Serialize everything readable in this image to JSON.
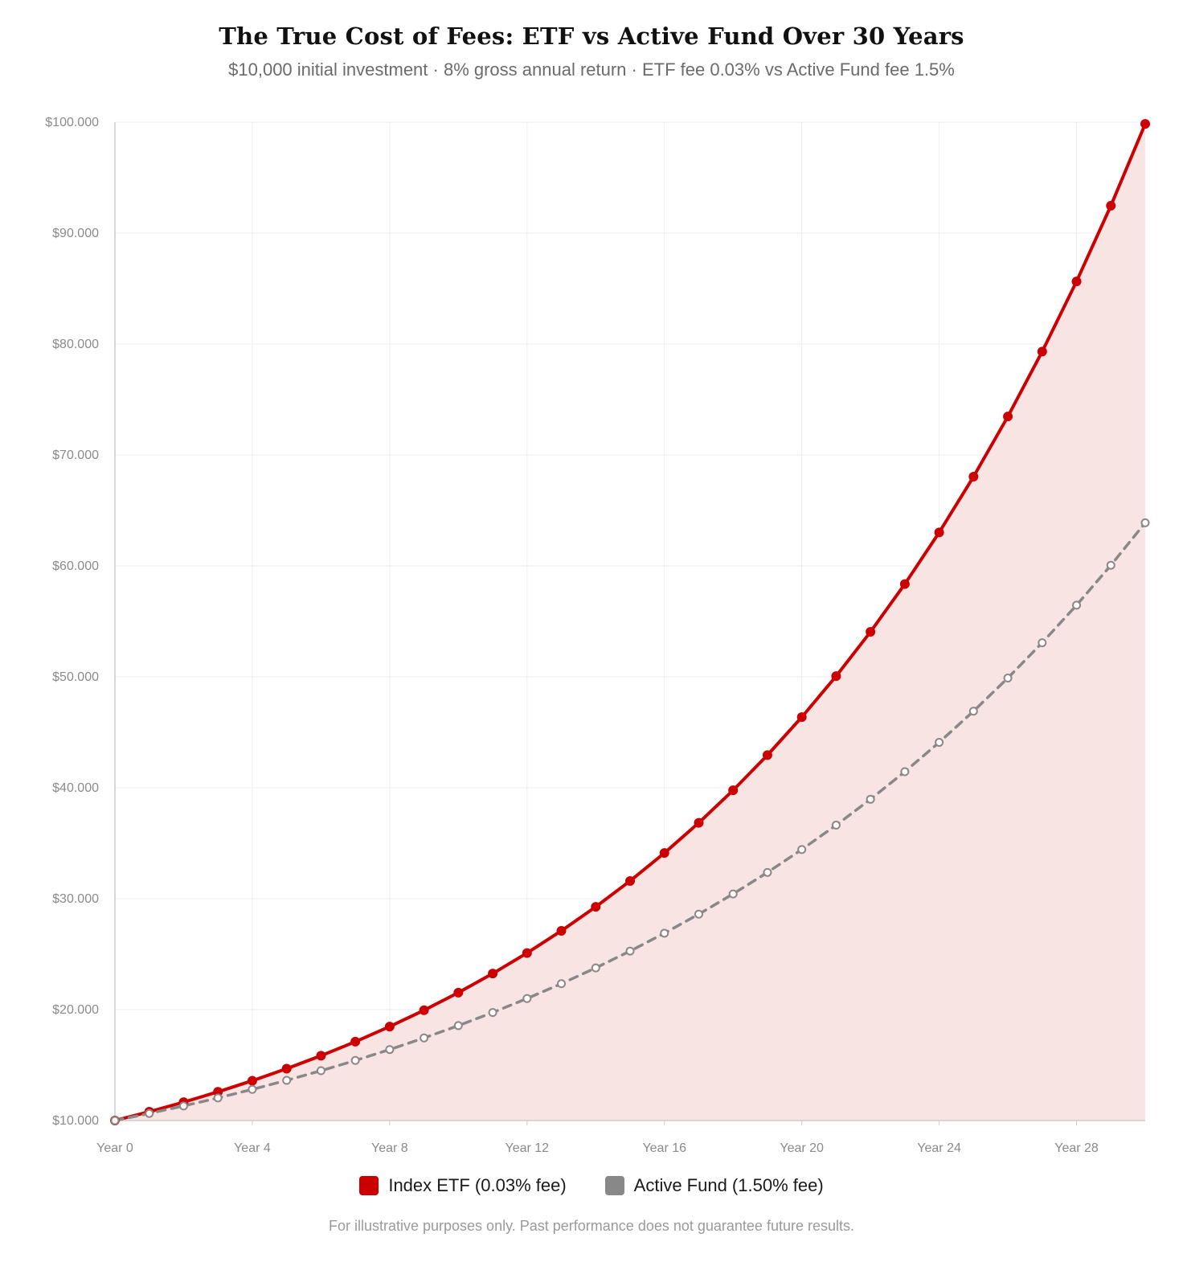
{
  "title": "The True Cost of Fees: ETF vs Active Fund Over 30 Years",
  "subtitle": "$10,000 initial investment · 8% gross annual return · ETF fee 0.03% vs Active Fund fee 1.5%",
  "footnote": "For illustrative purposes only. Past performance does not guarantee future results.",
  "colors": {
    "etf": "#cc0000",
    "etf_fill": "#f9e4e4",
    "active": "#888888",
    "active_marker": "#8f8686",
    "grid": "#eeeeee",
    "axis": "#cccccc"
  },
  "legend": {
    "etf_label": "Index ETF (0.03% fee)",
    "active_label": "Active Fund (1.50% fee)"
  },
  "chart_data": {
    "type": "line",
    "xlabel": "",
    "ylabel": "",
    "x": [
      0,
      1,
      2,
      3,
      4,
      5,
      6,
      7,
      8,
      9,
      10,
      11,
      12,
      13,
      14,
      15,
      16,
      17,
      18,
      19,
      20,
      21,
      22,
      23,
      24,
      25,
      26,
      27,
      28,
      29,
      30
    ],
    "x_tick_values": [
      0,
      4,
      8,
      12,
      16,
      20,
      24,
      28
    ],
    "x_tick_labels": [
      "Year 0",
      "Year 4",
      "Year 8",
      "Year 12",
      "Year 16",
      "Year 20",
      "Year 24",
      "Year 28"
    ],
    "y_tick_values": [
      10000,
      20000,
      30000,
      40000,
      50000,
      60000,
      70000,
      80000,
      90000,
      100000
    ],
    "y_tick_labels": [
      "$10.000",
      "$20.000",
      "$30.000",
      "$40.000",
      "$50.000",
      "$60.000",
      "$70.000",
      "$80.000",
      "$90.000",
      "$100.000"
    ],
    "ylim": [
      10000,
      100000
    ],
    "xlim": [
      0,
      30
    ],
    "grid": true,
    "legend_position": "bottom",
    "series": [
      {
        "name": "Index ETF (0.03% fee)",
        "style": "solid",
        "fill_to_axis": true,
        "values": [
          10000,
          10797,
          11658,
          12587,
          13590,
          14674,
          15844,
          17107,
          18471,
          19943,
          21533,
          23249,
          25103,
          27104,
          29265,
          31598,
          34117,
          36837,
          39773,
          42944,
          46367,
          50064,
          54055,
          58364,
          63017,
          68041,
          73465,
          79322,
          85645,
          92472,
          99844
        ]
      },
      {
        "name": "Active Fund (1.50% fee)",
        "style": "dashed",
        "fill_to_axis": false,
        "values": [
          10000,
          10638,
          11316,
          12038,
          12806,
          13622,
          14491,
          15415,
          16398,
          17444,
          18556,
          19739,
          20998,
          22337,
          23761,
          25276,
          26888,
          28603,
          30427,
          32367,
          34431,
          36627,
          38962,
          41447,
          44090,
          46901,
          49892,
          53073,
          56458,
          60058,
          63888
        ]
      }
    ]
  }
}
